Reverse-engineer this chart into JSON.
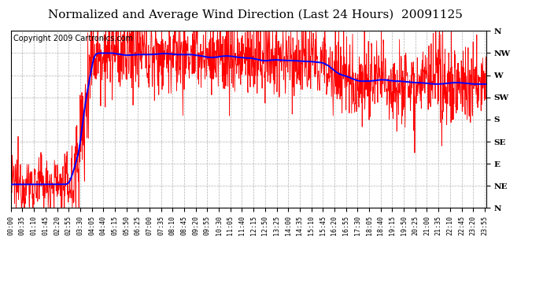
{
  "title": "Normalized and Average Wind Direction (Last 24 Hours)  20091125",
  "copyright": "Copyright 2009 Cartronics.com",
  "ytick_labels": [
    "N",
    "NW",
    "W",
    "SW",
    "S",
    "SE",
    "E",
    "NE",
    "N"
  ],
  "ytick_values": [
    360,
    315,
    270,
    225,
    180,
    135,
    90,
    45,
    0
  ],
  "ylim": [
    0,
    360
  ],
  "bg_color": "#ffffff",
  "plot_bg_color": "#ffffff",
  "grid_color": "#b0b0b0",
  "raw_color": "#ff0000",
  "avg_color": "#0000ff",
  "title_fontsize": 11,
  "copyright_fontsize": 7,
  "tick_fontsize": 7.5,
  "xtick_fontsize": 6,
  "raw_linewidth": 0.6,
  "avg_linewidth": 1.4
}
